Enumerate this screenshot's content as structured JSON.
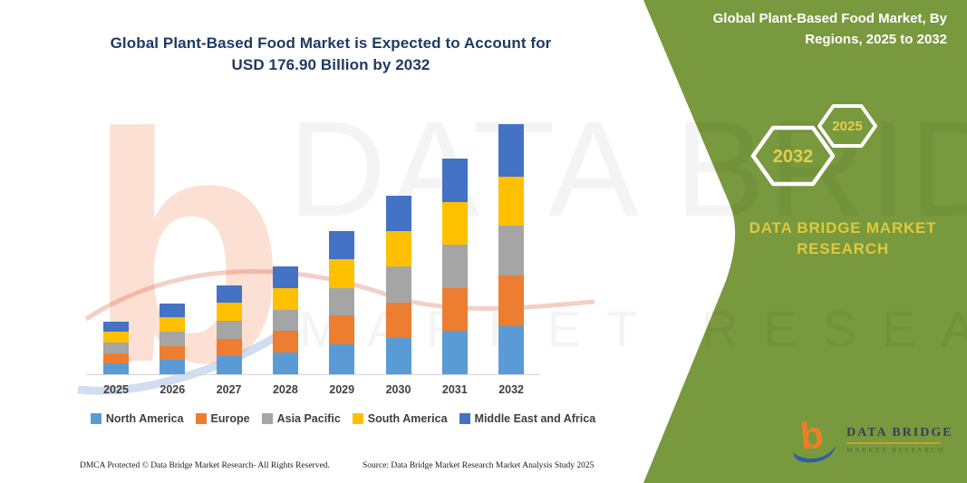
{
  "header": {
    "title_line1": "Global Plant-Based Food Market is Expected to Account for",
    "title_line2": "USD 176.90 Billion by 2032",
    "panel_title_line1": "Global Plant-Based Food Market, By",
    "panel_title_line2": "Regions, 2025 to 2032"
  },
  "hexagons": {
    "back_year": "2032",
    "front_year": "2025"
  },
  "brand": {
    "panel_wordmark_line1": "DATA BRIDGE MARKET",
    "panel_wordmark_line2": "RESEARCH",
    "logo_text": "DATA BRIDGE",
    "logo_subtext": "MARKET RESEARCH"
  },
  "watermark": {
    "line1": "DATA BRIDGE",
    "line2": "MARKET RESEARCH"
  },
  "footer": {
    "dmca": "DMCA Protected © Data Bridge Market Research-  All Rights Reserved.",
    "source": "Source: Data Bridge Market Research  Market Analysis Study 2025"
  },
  "colors": {
    "panel_green": "#78993E",
    "gold": "#DFC93C",
    "hex_label_gold": "#E5CE49",
    "title_navy": "#1F3A63",
    "axis_text": "#3F3F3F",
    "logo_orange": "#F07E26",
    "logo_blue": "#2E5FA3"
  },
  "chart_data": {
    "type": "bar",
    "stacked": true,
    "unit": "USD Billion",
    "title": "Global Plant-Based Food Market is Expected to Account for USD 176.90 Billion by 2032",
    "categories": [
      "2025",
      "2026",
      "2027",
      "2028",
      "2029",
      "2030",
      "2031",
      "2032"
    ],
    "series": [
      {
        "name": "North America",
        "color": "#5B9BD5",
        "values": [
          7.6,
          10.2,
          12.7,
          15.4,
          21.5,
          25.6,
          30.7,
          33.9
        ]
      },
      {
        "name": "Europe",
        "color": "#ED7D31",
        "values": [
          7.5,
          10.0,
          12.6,
          15.3,
          20.4,
          25.3,
          30.5,
          36.0
        ]
      },
      {
        "name": "Asia Pacific",
        "color": "#A5A5A5",
        "values": [
          7.1,
          10.0,
          12.6,
          15.2,
          19.4,
          25.3,
          30.5,
          35.1
        ]
      },
      {
        "name": "South America",
        "color": "#FFC000",
        "values": [
          8.1,
          10.0,
          12.6,
          15.3,
          20.3,
          25.2,
          30.4,
          35.0
        ]
      },
      {
        "name": "Middle East and Africa",
        "color": "#4472C4",
        "values": [
          7.1,
          10.0,
          12.6,
          15.2,
          20.0,
          25.2,
          30.4,
          36.9
        ]
      }
    ],
    "totals": [
      37.4,
      50.2,
      63.1,
      76.4,
      101.6,
      126.6,
      152.5,
      176.9
    ],
    "xlabel": "",
    "ylabel": "",
    "ylim": [
      0,
      180
    ],
    "gridlines": false,
    "legend_position": "bottom"
  }
}
